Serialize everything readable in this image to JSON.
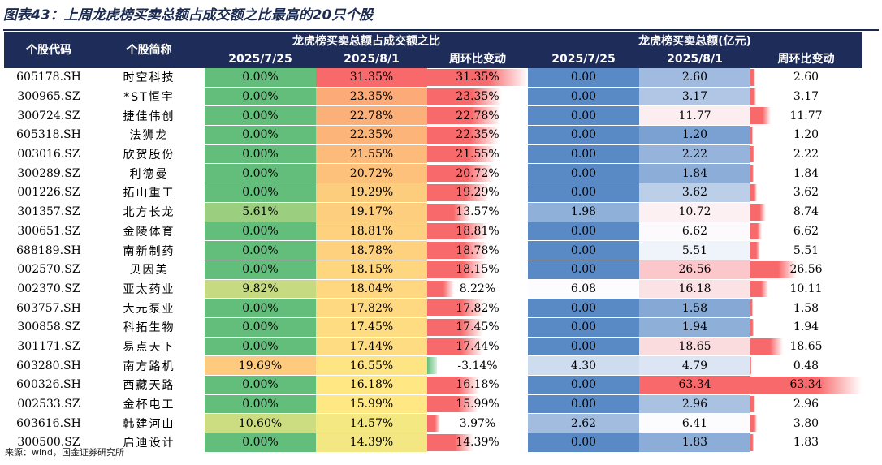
{
  "title": "图表43：上周龙虎榜买卖总额占成交额之比最高的20只个股",
  "source": "来源：wind，国金证券研究所",
  "headers": {
    "code": "个股代码",
    "name": "个股简称",
    "group1": "龙虎榜买卖总额占成交额之比",
    "group2": "龙虎榜买卖总额(亿元)",
    "date1": "2025/7/25",
    "date2": "2025/8/1",
    "change": "周环比变动"
  },
  "rows": [
    {
      "code": "605178.SH",
      "name": "时空科技",
      "r1": "0.00%",
      "r1v": 0.0,
      "r2": "31.35%",
      "r2v": 31.35,
      "rc": "31.35%",
      "rcv": 31.35,
      "a1": "0.00",
      "a1v": 0.0,
      "a2": "2.60",
      "a2v": 2.6,
      "ac": "2.60",
      "acv": 2.6
    },
    {
      "code": "300965.SZ",
      "name": "*ST恒宇",
      "r1": "0.00%",
      "r1v": 0.0,
      "r2": "23.35%",
      "r2v": 23.35,
      "rc": "23.35%",
      "rcv": 23.35,
      "a1": "0.00",
      "a1v": 0.0,
      "a2": "3.17",
      "a2v": 3.17,
      "ac": "3.17",
      "acv": 3.17
    },
    {
      "code": "300724.SZ",
      "name": "捷佳伟创",
      "r1": "0.00%",
      "r1v": 0.0,
      "r2": "22.78%",
      "r2v": 22.78,
      "rc": "22.78%",
      "rcv": 22.78,
      "a1": "0.00",
      "a1v": 0.0,
      "a2": "11.77",
      "a2v": 11.77,
      "ac": "11.77",
      "acv": 11.77
    },
    {
      "code": "605318.SH",
      "name": "法狮龙",
      "r1": "0.00%",
      "r1v": 0.0,
      "r2": "22.35%",
      "r2v": 22.35,
      "rc": "22.35%",
      "rcv": 22.35,
      "a1": "0.00",
      "a1v": 0.0,
      "a2": "1.20",
      "a2v": 1.2,
      "ac": "1.20",
      "acv": 1.2
    },
    {
      "code": "003016.SZ",
      "name": "欣贺股份",
      "r1": "0.00%",
      "r1v": 0.0,
      "r2": "21.55%",
      "r2v": 21.55,
      "rc": "21.55%",
      "rcv": 21.55,
      "a1": "0.00",
      "a1v": 0.0,
      "a2": "2.22",
      "a2v": 2.22,
      "ac": "2.22",
      "acv": 2.22
    },
    {
      "code": "300289.SZ",
      "name": "利德曼",
      "r1": "0.00%",
      "r1v": 0.0,
      "r2": "20.72%",
      "r2v": 20.72,
      "rc": "20.72%",
      "rcv": 20.72,
      "a1": "0.00",
      "a1v": 0.0,
      "a2": "1.84",
      "a2v": 1.84,
      "ac": "1.84",
      "acv": 1.84
    },
    {
      "code": "001226.SZ",
      "name": "拓山重工",
      "r1": "0.00%",
      "r1v": 0.0,
      "r2": "19.29%",
      "r2v": 19.29,
      "rc": "19.29%",
      "rcv": 19.29,
      "a1": "0.00",
      "a1v": 0.0,
      "a2": "3.62",
      "a2v": 3.62,
      "ac": "3.62",
      "acv": 3.62
    },
    {
      "code": "301357.SZ",
      "name": "北方长龙",
      "r1": "5.61%",
      "r1v": 5.61,
      "r2": "19.17%",
      "r2v": 19.17,
      "rc": "13.57%",
      "rcv": 13.57,
      "a1": "1.98",
      "a1v": 1.98,
      "a2": "10.72",
      "a2v": 10.72,
      "ac": "8.74",
      "acv": 8.74
    },
    {
      "code": "300651.SZ",
      "name": "金陵体育",
      "r1": "0.00%",
      "r1v": 0.0,
      "r2": "18.81%",
      "r2v": 18.81,
      "rc": "18.81%",
      "rcv": 18.81,
      "a1": "0.00",
      "a1v": 0.0,
      "a2": "6.62",
      "a2v": 6.62,
      "ac": "6.62",
      "acv": 6.62
    },
    {
      "code": "688189.SH",
      "name": "南新制药",
      "r1": "0.00%",
      "r1v": 0.0,
      "r2": "18.78%",
      "r2v": 18.78,
      "rc": "18.78%",
      "rcv": 18.78,
      "a1": "0.00",
      "a1v": 0.0,
      "a2": "5.51",
      "a2v": 5.51,
      "ac": "5.51",
      "acv": 5.51
    },
    {
      "code": "002570.SZ",
      "name": "贝因美",
      "r1": "0.00%",
      "r1v": 0.0,
      "r2": "18.15%",
      "r2v": 18.15,
      "rc": "18.15%",
      "rcv": 18.15,
      "a1": "0.00",
      "a1v": 0.0,
      "a2": "26.56",
      "a2v": 26.56,
      "ac": "26.56",
      "acv": 26.56
    },
    {
      "code": "002370.SZ",
      "name": "亚太药业",
      "r1": "9.82%",
      "r1v": 9.82,
      "r2": "18.04%",
      "r2v": 18.04,
      "rc": "8.22%",
      "rcv": 8.22,
      "a1": "6.08",
      "a1v": 6.08,
      "a2": "16.18",
      "a2v": 16.18,
      "ac": "10.11",
      "acv": 10.11
    },
    {
      "code": "603757.SH",
      "name": "大元泵业",
      "r1": "0.00%",
      "r1v": 0.0,
      "r2": "17.82%",
      "r2v": 17.82,
      "rc": "17.82%",
      "rcv": 17.82,
      "a1": "0.00",
      "a1v": 0.0,
      "a2": "1.58",
      "a2v": 1.58,
      "ac": "1.58",
      "acv": 1.58
    },
    {
      "code": "300858.SZ",
      "name": "科拓生物",
      "r1": "0.00%",
      "r1v": 0.0,
      "r2": "17.45%",
      "r2v": 17.45,
      "rc": "17.45%",
      "rcv": 17.45,
      "a1": "0.00",
      "a1v": 0.0,
      "a2": "1.94",
      "a2v": 1.94,
      "ac": "1.94",
      "acv": 1.94
    },
    {
      "code": "301171.SZ",
      "name": "易点天下",
      "r1": "0.00%",
      "r1v": 0.0,
      "r2": "17.44%",
      "r2v": 17.44,
      "rc": "17.44%",
      "rcv": 17.44,
      "a1": "0.00",
      "a1v": 0.0,
      "a2": "18.65",
      "a2v": 18.65,
      "ac": "18.65",
      "acv": 18.65
    },
    {
      "code": "603280.SH",
      "name": "南方路机",
      "r1": "19.69%",
      "r1v": 19.69,
      "r2": "16.55%",
      "r2v": 16.55,
      "rc": "-3.14%",
      "rcv": -3.14,
      "a1": "4.30",
      "a1v": 4.3,
      "a2": "4.79",
      "a2v": 4.79,
      "ac": "0.48",
      "acv": 0.48
    },
    {
      "code": "600326.SH",
      "name": "西藏天路",
      "r1": "0.00%",
      "r1v": 0.0,
      "r2": "16.18%",
      "r2v": 16.18,
      "rc": "16.18%",
      "rcv": 16.18,
      "a1": "0.00",
      "a1v": 0.0,
      "a2": "63.34",
      "a2v": 63.34,
      "ac": "63.34",
      "acv": 63.34
    },
    {
      "code": "002533.SZ",
      "name": "金杯电工",
      "r1": "0.00%",
      "r1v": 0.0,
      "r2": "15.99%",
      "r2v": 15.99,
      "rc": "15.99%",
      "rcv": 15.99,
      "a1": "0.00",
      "a1v": 0.0,
      "a2": "2.96",
      "a2v": 2.96,
      "ac": "2.96",
      "acv": 2.96
    },
    {
      "code": "603616.SH",
      "name": "韩建河山",
      "r1": "10.60%",
      "r1v": 10.6,
      "r2": "14.57%",
      "r2v": 14.57,
      "rc": "3.97%",
      "rcv": 3.97,
      "a1": "2.62",
      "a1v": 2.62,
      "a2": "6.41",
      "a2v": 6.41,
      "ac": "3.80",
      "acv": 3.8
    },
    {
      "code": "300500.SZ",
      "name": "启迪设计",
      "r1": "0.00%",
      "r1v": 0.0,
      "r2": "14.39%",
      "r2v": 14.39,
      "rc": "14.39%",
      "rcv": 14.39,
      "a1": "0.00",
      "a1v": 0.0,
      "a2": "1.83",
      "a2v": 1.83,
      "ac": "1.83",
      "acv": 1.83
    }
  ]
}
